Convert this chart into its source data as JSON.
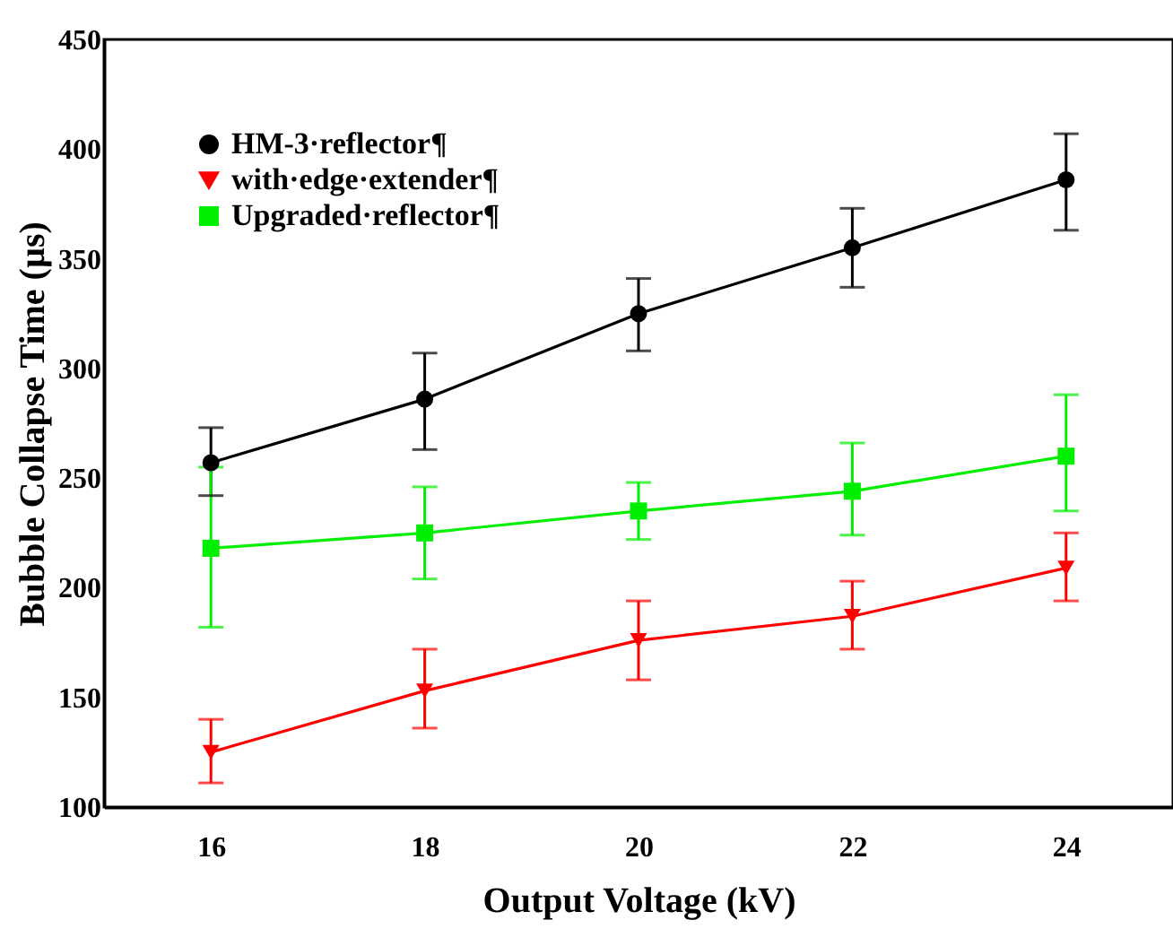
{
  "chart_data": {
    "type": "line",
    "xlabel": "Output Voltage  (kV)",
    "ylabel": "Bubble Collapse Time  (µs)",
    "x": [
      16,
      18,
      20,
      22,
      24
    ],
    "xlim": [
      15,
      25
    ],
    "xticks": [
      16,
      18,
      20,
      22,
      24
    ],
    "ylim": [
      100,
      450
    ],
    "yticks": [
      100,
      150,
      200,
      250,
      300,
      350,
      400,
      450
    ],
    "grid": false,
    "legend": "top left",
    "series": [
      {
        "name": "HM-3·reflector¶",
        "color": "#000000",
        "marker": "circle",
        "values": [
          257,
          286,
          325,
          355,
          386
        ],
        "errors": [
          [
            242,
            273
          ],
          [
            263,
            307
          ],
          [
            308,
            341
          ],
          [
            337,
            373
          ],
          [
            363,
            407
          ]
        ]
      },
      {
        "name": "with·edge·extender¶",
        "color": "#ff0000",
        "marker": "triangle",
        "values": [
          125,
          153,
          176,
          187,
          209
        ],
        "errors": [
          [
            111,
            140
          ],
          [
            136,
            172
          ],
          [
            158,
            194
          ],
          [
            172,
            203
          ],
          [
            194,
            225
          ]
        ]
      },
      {
        "name": "Upgraded·reflector¶",
        "color": "#00ee00",
        "marker": "square",
        "values": [
          218,
          225,
          235,
          244,
          260
        ],
        "errors": [
          [
            182,
            255
          ],
          [
            204,
            246
          ],
          [
            222,
            248
          ],
          [
            224,
            266
          ],
          [
            235,
            288
          ]
        ]
      }
    ]
  }
}
